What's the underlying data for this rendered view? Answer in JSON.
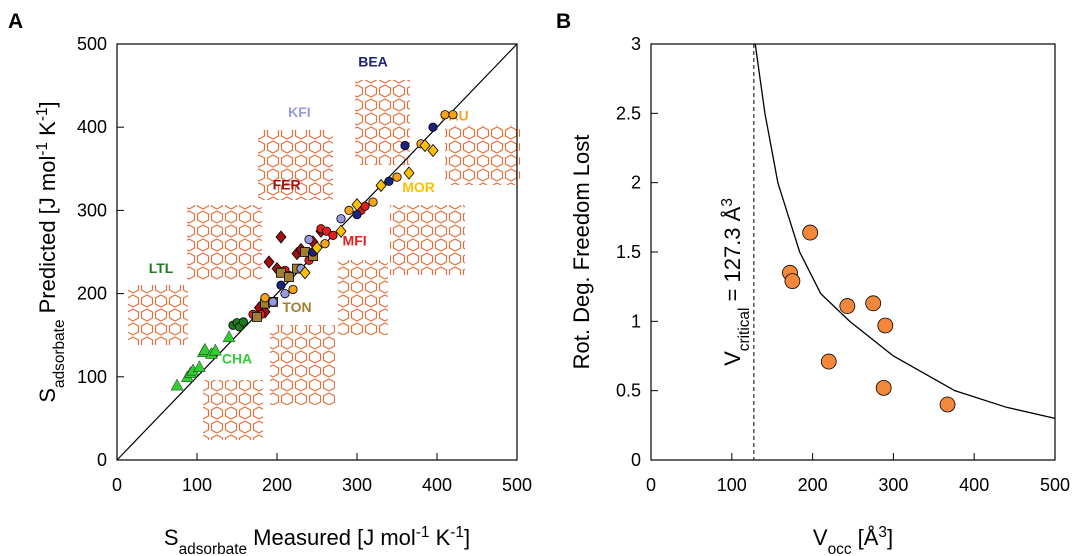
{
  "chart_data": [
    {
      "type": "scatter",
      "panel": "A",
      "xlabel": [
        {
          "text": "S"
        },
        {
          "text": "adsorbate",
          "shift": "sub"
        },
        {
          "text": " Measured [J mol"
        },
        {
          "text": "-1",
          "shift": "super"
        },
        {
          "text": " K"
        },
        {
          "text": "-1",
          "shift": "super"
        },
        {
          "text": "]"
        }
      ],
      "ylabel": [
        {
          "text": "S"
        },
        {
          "text": "adsorbate",
          "shift": "sub"
        },
        {
          "text": " Predicted [J mol"
        },
        {
          "text": "-1",
          "shift": "super"
        },
        {
          "text": " K"
        },
        {
          "text": "-1",
          "shift": "super"
        },
        {
          "text": "]"
        }
      ],
      "xlim": [
        0,
        500
      ],
      "ylim": [
        0,
        500
      ],
      "xticks": [
        0,
        100,
        200,
        300,
        400,
        500
      ],
      "yticks": [
        0,
        100,
        200,
        300,
        400,
        500
      ],
      "diagonal": true,
      "series": [
        {
          "name": "CHA",
          "color": "#33cc33",
          "marker": "triangle",
          "x": [
            75,
            88,
            92,
            95,
            103,
            108,
            110,
            118,
            123,
            140
          ],
          "values": [
            90,
            100,
            105,
            108,
            112,
            130,
            133,
            128,
            132,
            148
          ]
        },
        {
          "name": "LTL",
          "color": "#1e7b1e",
          "marker": "circle",
          "x": [
            145,
            150,
            153,
            158
          ],
          "values": [
            162,
            165,
            160,
            166
          ]
        },
        {
          "name": "FER",
          "color": "#a01010",
          "marker": "diamond",
          "x": [
            178,
            185,
            190,
            200,
            205,
            225,
            230,
            245,
            255
          ],
          "values": [
            183,
            178,
            238,
            230,
            268,
            248,
            253,
            262,
            275
          ]
        },
        {
          "name": "MFI",
          "color": "#e02020",
          "marker": "circle",
          "x": [
            170,
            175,
            180,
            210,
            215,
            240,
            255,
            262,
            270,
            305,
            310
          ],
          "values": [
            175,
            173,
            175,
            228,
            222,
            240,
            278,
            275,
            270,
            300,
            305
          ]
        },
        {
          "name": "TON",
          "color": "#a08030",
          "marker": "square",
          "x": [
            175,
            185,
            195,
            205,
            215,
            225,
            235,
            245
          ],
          "values": [
            172,
            188,
            190,
            225,
            220,
            230,
            250,
            245
          ]
        },
        {
          "name": "KFI",
          "color": "#9999dd",
          "marker": "circle",
          "x": [
            195,
            210,
            230,
            240,
            280
          ],
          "values": [
            190,
            200,
            230,
            265,
            290
          ]
        },
        {
          "name": "BEA",
          "color": "#1a237e",
          "marker": "circle",
          "x": [
            205,
            245,
            300,
            340,
            360,
            395
          ],
          "values": [
            210,
            250,
            295,
            335,
            378,
            400
          ]
        },
        {
          "name": "FAU",
          "color": "#f7a21b",
          "marker": "circle",
          "x": [
            185,
            220,
            260,
            290,
            320,
            350,
            380,
            410,
            420
          ],
          "values": [
            195,
            205,
            260,
            300,
            310,
            340,
            380,
            415,
            415
          ]
        },
        {
          "name": "MOR",
          "color": "#ffc000",
          "marker": "diamond",
          "x": [
            235,
            250,
            280,
            300,
            330,
            365,
            385,
            395
          ],
          "values": [
            225,
            255,
            275,
            307,
            330,
            345,
            378,
            372
          ]
        }
      ]
    },
    {
      "type": "scatter",
      "panel": "B",
      "xlabel": [
        {
          "text": "V"
        },
        {
          "text": "occ",
          "shift": "sub"
        },
        {
          "text": " [Å"
        },
        {
          "text": "3",
          "shift": "super"
        },
        {
          "text": "]"
        }
      ],
      "ylabel": [
        {
          "text": "Rot. Deg. Freedom Lost"
        }
      ],
      "xlim": [
        0,
        500
      ],
      "ylim": [
        0,
        3
      ],
      "xticks": [
        0,
        100,
        200,
        300,
        400,
        500
      ],
      "yticks": [
        0,
        0.5,
        1,
        1.5,
        2,
        2.5,
        3
      ],
      "vline": 127.3,
      "vline_label": [
        {
          "text": "V"
        },
        {
          "text": "critical",
          "shift": "sub"
        },
        {
          "text": " = 127.3 Å"
        },
        {
          "text": "3",
          "shift": "super"
        }
      ],
      "series": [
        {
          "color": "#000000",
          "marker": "line",
          "x": [
            129,
            141,
            157,
            184,
            210,
            246,
            300,
            376,
            440,
            500
          ],
          "values": [
            3,
            2.5,
            2,
            1.5,
            1.2,
            1,
            0.75,
            0.5,
            0.38,
            0.3
          ]
        },
        {
          "color": "#f4883a",
          "marker": "circle",
          "x": [
            172,
            175,
            197,
            220,
            243,
            275,
            290,
            288,
            367
          ],
          "values": [
            1.35,
            1.29,
            1.64,
            0.71,
            1.11,
            1.13,
            0.97,
            0.52,
            0.4
          ]
        }
      ]
    }
  ]
}
